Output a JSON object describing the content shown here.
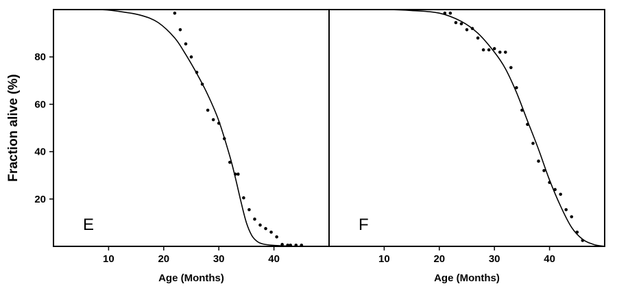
{
  "figure": {
    "ylabel": "Fraction alive (%)"
  },
  "chart_data": [
    {
      "type": "scatter",
      "panel_label": "E",
      "xlabel": "Age (Months)",
      "ylabel": "Fraction alive (%)",
      "xlim": [
        0,
        50
      ],
      "ylim": [
        0,
        100
      ],
      "xticks": [
        10,
        20,
        30,
        40
      ],
      "yticks": [
        20,
        40,
        60,
        80
      ],
      "grid": false,
      "points": [
        [
          22,
          98.5
        ],
        [
          23,
          91.5
        ],
        [
          24,
          85.5
        ],
        [
          25,
          80
        ],
        [
          26,
          73.5
        ],
        [
          27,
          68.5
        ],
        [
          28,
          57.5
        ],
        [
          29,
          53.5
        ],
        [
          30,
          52
        ],
        [
          31,
          45.5
        ],
        [
          32,
          35.5
        ],
        [
          33,
          30.5
        ],
        [
          33.5,
          30.5
        ],
        [
          34.5,
          20.5
        ],
        [
          35.5,
          15.5
        ],
        [
          36.5,
          11.5
        ],
        [
          37.5,
          9
        ],
        [
          38.5,
          7.5
        ],
        [
          39.5,
          6
        ],
        [
          40.5,
          4
        ],
        [
          41.5,
          0.8
        ],
        [
          42.5,
          0.5
        ],
        [
          43,
          0.5
        ],
        [
          44,
          0.5
        ],
        [
          45,
          0.5
        ]
      ],
      "fit_curve": [
        [
          0,
          100
        ],
        [
          8,
          100
        ],
        [
          12,
          99.2
        ],
        [
          16,
          97.5
        ],
        [
          19,
          94.5
        ],
        [
          22,
          88
        ],
        [
          24,
          81
        ],
        [
          26,
          73
        ],
        [
          28,
          64
        ],
        [
          30,
          53
        ],
        [
          32,
          38
        ],
        [
          33,
          29
        ],
        [
          34,
          19
        ],
        [
          35,
          10
        ],
        [
          36,
          4.5
        ],
        [
          37,
          2
        ],
        [
          38,
          1
        ],
        [
          40,
          0.4
        ],
        [
          43,
          0.1
        ],
        [
          45,
          0
        ]
      ]
    },
    {
      "type": "scatter",
      "panel_label": "F",
      "xlabel": "Age (Months)",
      "ylabel": "",
      "xlim": [
        0,
        50
      ],
      "ylim": [
        0,
        100
      ],
      "xticks": [
        10,
        20,
        30,
        40
      ],
      "yticks": [],
      "grid": false,
      "points": [
        [
          21,
          98.5
        ],
        [
          22,
          98.5
        ],
        [
          23,
          94.5
        ],
        [
          24,
          94
        ],
        [
          25,
          91.5
        ],
        [
          26,
          92
        ],
        [
          27,
          88
        ],
        [
          28,
          83
        ],
        [
          29,
          83
        ],
        [
          30,
          83.5
        ],
        [
          31,
          82
        ],
        [
          32,
          82
        ],
        [
          33,
          75.5
        ],
        [
          34,
          67
        ],
        [
          35,
          57.5
        ],
        [
          36,
          51.5
        ],
        [
          37,
          43.5
        ],
        [
          38,
          36
        ],
        [
          39,
          32
        ],
        [
          40,
          27
        ],
        [
          41,
          24
        ],
        [
          42,
          22
        ],
        [
          43,
          15.5
        ],
        [
          44,
          12.5
        ],
        [
          45,
          6
        ],
        [
          46,
          2.5
        ]
      ],
      "fit_curve": [
        [
          0,
          100
        ],
        [
          10,
          100
        ],
        [
          15,
          99.6
        ],
        [
          20,
          98.5
        ],
        [
          24,
          95
        ],
        [
          27,
          90
        ],
        [
          30,
          82
        ],
        [
          32,
          75
        ],
        [
          34,
          65
        ],
        [
          36,
          53
        ],
        [
          38,
          41
        ],
        [
          40,
          28
        ],
        [
          42,
          17
        ],
        [
          44,
          8
        ],
        [
          46,
          3
        ],
        [
          48,
          0.8
        ],
        [
          50,
          0
        ]
      ]
    }
  ]
}
